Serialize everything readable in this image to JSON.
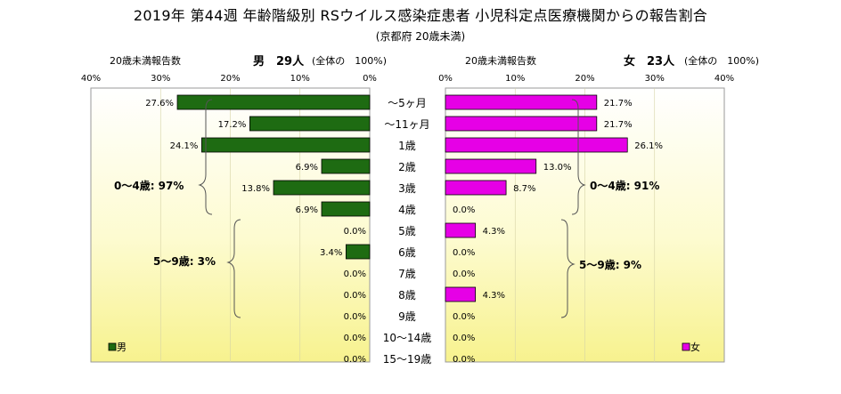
{
  "title": "2019年 第44週 年齢階級別 RSウイルス感染症患者 小児科定点医療機関からの報告割合",
  "subtitle": "(京都府 20歳未満)",
  "headers": {
    "left_report_label": "20歳未満報告数",
    "left_sex": "男",
    "left_count": "29人",
    "left_total": "(全体の　100%)",
    "right_report_label": "20歳未満報告数",
    "right_sex": "女",
    "right_count": "23人",
    "right_total": "(全体の　100%)"
  },
  "chart_data": {
    "type": "bar",
    "orientation": "horizontal-butterfly",
    "categories": [
      "〜5ヶ月",
      "〜11ヶ月",
      "1歳",
      "2歳",
      "3歳",
      "4歳",
      "5歳",
      "6歳",
      "7歳",
      "8歳",
      "9歳",
      "10〜14歳",
      "15〜19歳"
    ],
    "series": [
      {
        "name": "男",
        "color": "#1e6b12",
        "values": [
          27.6,
          17.2,
          24.1,
          6.9,
          13.8,
          6.9,
          0.0,
          3.4,
          0.0,
          0.0,
          0.0,
          0.0,
          0.0
        ],
        "labels": [
          "27.6%",
          "17.2%",
          "24.1%",
          "6.9%",
          "13.8%",
          "6.9%",
          "0.0%",
          "3.4%",
          "0.0%",
          "0.0%",
          "0.0%",
          "0.0%",
          "0.0%"
        ]
      },
      {
        "name": "女",
        "color": "#e600e6",
        "values": [
          21.7,
          21.7,
          26.1,
          13.0,
          8.7,
          0.0,
          4.3,
          0.0,
          0.0,
          4.3,
          0.0,
          0.0,
          0.0
        ],
        "labels": [
          "21.7%",
          "21.7%",
          "26.1%",
          "13.0%",
          "8.7%",
          "0.0%",
          "4.3%",
          "0.0%",
          "0.0%",
          "4.3%",
          "0.0%",
          "0.0%",
          "0.0%"
        ]
      }
    ],
    "xlim": [
      0,
      40
    ],
    "left_ticks": [
      "40%",
      "30%",
      "20%",
      "10%",
      "0%"
    ],
    "right_ticks": [
      "0%",
      "10%",
      "20%",
      "30%",
      "40%"
    ],
    "legend": [
      "男",
      "女"
    ],
    "legend_position": "bottom-left / bottom-right",
    "annotations": {
      "left_0_4": "0〜4歳: 97%",
      "left_5_9": "5〜9歳: 3%",
      "right_0_4": "0〜4歳: 91%",
      "right_5_9": "5〜9歳: 9%"
    },
    "background": "yellow gradient"
  }
}
